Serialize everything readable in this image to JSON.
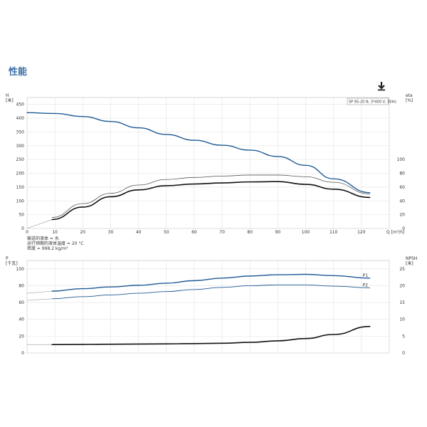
{
  "header": {
    "title": "性能"
  },
  "icons": {
    "download": "download-icon"
  },
  "colors": {
    "blue": "#1f5a96",
    "gray": "#555555",
    "black": "#111111",
    "grid": "#e3e3e3",
    "axis": "#999999"
  },
  "chart_data": [
    {
      "type": "line",
      "legend_box": "SP 95-20 N, 3*400 V, 50Hz",
      "x_unit": "Q [m³/h]",
      "x_ticks": [
        0,
        10,
        20,
        30,
        40,
        50,
        60,
        70,
        80,
        90,
        100,
        110,
        120
      ],
      "xlim": [
        0,
        130
      ],
      "left_axis": {
        "label_top": "H",
        "label_unit": "[米]",
        "ylim": [
          0,
          475
        ],
        "ticks": [
          0,
          50,
          100,
          150,
          200,
          250,
          300,
          350,
          400,
          450
        ]
      },
      "right_axis": {
        "label_top": "eta",
        "label_unit": "[%]",
        "ylim": [
          0,
          190
        ],
        "ticks": [
          0,
          20,
          40,
          60,
          80,
          100
        ]
      },
      "notes": [
        "输送的液体 = 水",
        "运行预期的液体温度 = 20 °C",
        "密度 = 998.2 kg/m³"
      ],
      "series": [
        {
          "axis": "left",
          "color": "#1f5a96",
          "width": 1.4,
          "points": [
            [
              0,
              420
            ],
            [
              10,
              417
            ],
            [
              20,
              406
            ],
            [
              30,
              388
            ],
            [
              40,
              365
            ],
            [
              50,
              341
            ],
            [
              60,
              320
            ],
            [
              70,
              302
            ],
            [
              80,
              284
            ],
            [
              90,
              261
            ],
            [
              100,
              229
            ],
            [
              110,
              180
            ],
            [
              123,
              130
            ]
          ]
        },
        {
          "axis": "right",
          "color": "#555555",
          "width": 0.8,
          "points": [
            [
              9,
              16
            ],
            [
              20,
              36
            ],
            [
              30,
              51
            ],
            [
              40,
              63
            ],
            [
              50,
              71
            ],
            [
              60,
              74
            ],
            [
              70,
              76
            ],
            [
              80,
              77.5
            ],
            [
              90,
              77.5
            ],
            [
              100,
              75
            ],
            [
              110,
              67
            ],
            [
              123,
              50
            ]
          ]
        },
        {
          "axis": "right",
          "color": "#111111",
          "width": 1.6,
          "points": [
            [
              9,
              13
            ],
            [
              20,
              31
            ],
            [
              30,
              46
            ],
            [
              40,
              56
            ],
            [
              50,
              62
            ],
            [
              60,
              64.5
            ],
            [
              70,
              66
            ],
            [
              80,
              67.5
            ],
            [
              90,
              68
            ],
            [
              100,
              64
            ],
            [
              110,
              57
            ],
            [
              123,
              45
            ]
          ]
        }
      ],
      "extension_lines": [
        {
          "axis": "left",
          "color": "#999999",
          "points": [
            [
              0,
              420
            ],
            [
              10,
              417
            ]
          ]
        },
        {
          "axis": "right",
          "color": "#999999",
          "points": [
            [
              0,
              0
            ],
            [
              9,
              13
            ]
          ]
        }
      ]
    },
    {
      "type": "line",
      "xlim": [
        0,
        130
      ],
      "left_axis": {
        "label_top": "P",
        "label_unit": "[千瓦]",
        "ylim": [
          0,
          110
        ],
        "ticks": [
          0,
          20,
          40,
          60,
          80,
          100
        ]
      },
      "right_axis": {
        "label_top": "NPSH",
        "label_unit": "[米]",
        "ylim": [
          0,
          27.5
        ],
        "ticks": [
          0,
          5,
          10,
          15,
          20,
          25
        ]
      },
      "series": [
        {
          "name": "P1",
          "axis": "left",
          "color": "#1f5a96",
          "width": 1.4,
          "points": [
            [
              9,
              73.5
            ],
            [
              20,
              76.5
            ],
            [
              30,
              78.5
            ],
            [
              40,
              80.5
            ],
            [
              50,
              83
            ],
            [
              60,
              86
            ],
            [
              70,
              89
            ],
            [
              80,
              91.5
            ],
            [
              90,
              93
            ],
            [
              100,
              93.5
            ],
            [
              110,
              92
            ],
            [
              123,
              89
            ]
          ]
        },
        {
          "name": "P2",
          "axis": "left",
          "color": "#1f5a96",
          "width": 0.9,
          "points": [
            [
              9,
              64.5
            ],
            [
              20,
              67
            ],
            [
              30,
              69
            ],
            [
              40,
              71
            ],
            [
              50,
              73
            ],
            [
              60,
              75.5
            ],
            [
              70,
              78
            ],
            [
              80,
              80
            ],
            [
              90,
              81
            ],
            [
              100,
              81
            ],
            [
              110,
              79.5
            ],
            [
              123,
              77.5
            ]
          ]
        },
        {
          "axis": "right",
          "color": "#111111",
          "width": 1.6,
          "points": [
            [
              9,
              2.5
            ],
            [
              20,
              2.55
            ],
            [
              30,
              2.6
            ],
            [
              40,
              2.65
            ],
            [
              50,
              2.7
            ],
            [
              60,
              2.8
            ],
            [
              70,
              2.9
            ],
            [
              80,
              3.15
            ],
            [
              90,
              3.6
            ],
            [
              100,
              4.3
            ],
            [
              110,
              5.5
            ],
            [
              123,
              7.9
            ]
          ]
        }
      ],
      "extension_lines": [
        {
          "axis": "left",
          "color": "#999999",
          "points": [
            [
              0,
              71
            ],
            [
              9,
              73.5
            ]
          ]
        },
        {
          "axis": "left",
          "color": "#999999",
          "points": [
            [
              0,
              62.5
            ],
            [
              9,
              64.5
            ]
          ]
        },
        {
          "axis": "right",
          "color": "#999999",
          "points": [
            [
              0,
              2.5
            ],
            [
              9,
              2.5
            ]
          ]
        }
      ]
    }
  ]
}
